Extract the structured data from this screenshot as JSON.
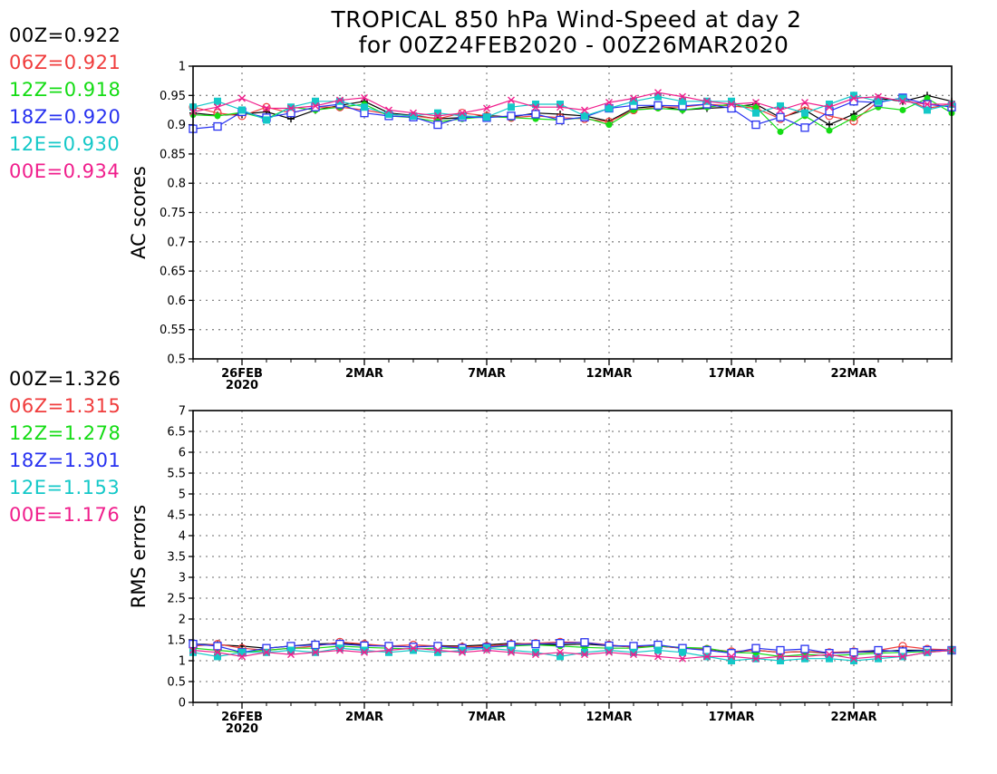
{
  "title_line1": "TROPICAL 850 hPa Wind-Speed at day 2",
  "title_line2": "for 00Z24FEB2020 - 00Z26MAR2020",
  "colors": {
    "00Z": "#000000",
    "06Z": "#f03c3c",
    "12Z": "#14dc14",
    "18Z": "#2832f0",
    "12E": "#14c8c8",
    "00E": "#f01e8c"
  },
  "legend_top": [
    {
      "text": "00Z=0.922",
      "color": "#000000"
    },
    {
      "text": "06Z=0.921",
      "color": "#f03c3c"
    },
    {
      "text": "12Z=0.918",
      "color": "#14dc14"
    },
    {
      "text": "18Z=0.920",
      "color": "#2832f0"
    },
    {
      "text": "12E=0.930",
      "color": "#14c8c8"
    },
    {
      "text": "00E=0.934",
      "color": "#f01e8c"
    }
  ],
  "legend_bottom": [
    {
      "text": "00Z=1.326",
      "color": "#000000"
    },
    {
      "text": "06Z=1.315",
      "color": "#f03c3c"
    },
    {
      "text": "12Z=1.278",
      "color": "#14dc14"
    },
    {
      "text": "18Z=1.301",
      "color": "#2832f0"
    },
    {
      "text": "12E=1.153",
      "color": "#14c8c8"
    },
    {
      "text": "00E=1.176",
      "color": "#f01e8c"
    }
  ],
  "chart_data": [
    {
      "type": "line",
      "ylabel": "AC scores",
      "ylim": [
        0.5,
        1
      ],
      "yticks": [
        "0.5",
        "0.55",
        "0.6",
        "0.65",
        "0.7",
        "0.75",
        "0.8",
        "0.85",
        "0.9",
        "0.95",
        "1"
      ],
      "xlim": [
        24,
        55
      ],
      "xticks": [
        {
          "x": 26,
          "label": "26FEB",
          "sub": "2020"
        },
        {
          "x": 31,
          "label": "2MAR",
          "sub": ""
        },
        {
          "x": 36,
          "label": "7MAR",
          "sub": ""
        },
        {
          "x": 41,
          "label": "12MAR",
          "sub": ""
        },
        {
          "x": 46,
          "label": "17MAR",
          "sub": ""
        },
        {
          "x": 51,
          "label": "22MAR",
          "sub": ""
        }
      ],
      "grid": true,
      "x": [
        24,
        25,
        26,
        27,
        28,
        29,
        30,
        31,
        32,
        33,
        34,
        35,
        36,
        37,
        38,
        39,
        40,
        41,
        42,
        43,
        44,
        45,
        46,
        47,
        48,
        49,
        50,
        51,
        52,
        53,
        54,
        55
      ],
      "series": [
        {
          "name": "00Z",
          "marker": "plus",
          "values": [
            0.92,
            0.916,
            0.918,
            0.922,
            0.91,
            0.925,
            0.933,
            0.94,
            0.92,
            0.916,
            0.91,
            0.912,
            0.916,
            0.913,
            0.92,
            0.918,
            0.915,
            0.906,
            0.928,
            0.932,
            0.925,
            0.928,
            0.93,
            0.935,
            0.912,
            0.925,
            0.9,
            0.918,
            0.945,
            0.94,
            0.95,
            0.94
          ]
        },
        {
          "name": "06Z",
          "marker": "circle",
          "values": [
            0.93,
            0.92,
            0.915,
            0.93,
            0.92,
            0.93,
            0.93,
            0.925,
            0.918,
            0.915,
            0.91,
            0.92,
            0.915,
            0.912,
            0.915,
            0.912,
            0.91,
            0.905,
            0.925,
            0.93,
            0.93,
            0.935,
            0.932,
            0.928,
            0.91,
            0.93,
            0.915,
            0.906,
            0.94,
            0.945,
            0.928,
            0.935
          ]
        },
        {
          "name": "12Z",
          "marker": "dot",
          "values": [
            0.917,
            0.915,
            0.921,
            0.91,
            0.93,
            0.925,
            0.93,
            0.935,
            0.915,
            0.912,
            0.905,
            0.91,
            0.914,
            0.912,
            0.91,
            0.908,
            0.912,
            0.9,
            0.925,
            0.928,
            0.925,
            0.93,
            0.935,
            0.93,
            0.888,
            0.915,
            0.89,
            0.912,
            0.93,
            0.925,
            0.945,
            0.92
          ]
        },
        {
          "name": "18Z",
          "marker": "square-open",
          "values": [
            0.893,
            0.897,
            0.922,
            0.912,
            0.92,
            0.93,
            0.935,
            0.92,
            0.915,
            0.913,
            0.9,
            0.913,
            0.912,
            0.915,
            0.918,
            0.908,
            0.913,
            0.928,
            0.933,
            0.933,
            0.932,
            0.935,
            0.928,
            0.9,
            0.913,
            0.895,
            0.923,
            0.94,
            0.938,
            0.946,
            0.935,
            0.93
          ]
        },
        {
          "name": "12E",
          "marker": "square-filled",
          "values": [
            0.93,
            0.94,
            0.925,
            0.908,
            0.93,
            0.94,
            0.94,
            0.93,
            0.918,
            0.915,
            0.92,
            0.915,
            0.913,
            0.93,
            0.935,
            0.935,
            0.915,
            0.928,
            0.94,
            0.948,
            0.94,
            0.94,
            0.94,
            0.92,
            0.932,
            0.92,
            0.935,
            0.95,
            0.94,
            0.945,
            0.925,
            0.935
          ]
        },
        {
          "name": "00E",
          "marker": "cross",
          "values": [
            0.922,
            0.93,
            0.945,
            0.928,
            0.928,
            0.932,
            0.942,
            0.946,
            0.925,
            0.92,
            0.915,
            0.92,
            0.928,
            0.942,
            0.93,
            0.93,
            0.925,
            0.938,
            0.945,
            0.955,
            0.948,
            0.94,
            0.935,
            0.938,
            0.925,
            0.938,
            0.93,
            0.945,
            0.948,
            0.94,
            0.935,
            0.935
          ]
        }
      ]
    },
    {
      "type": "line",
      "ylabel": "RMS errors",
      "ylim": [
        0,
        7
      ],
      "yticks": [
        "0",
        "0.5",
        "1",
        "1.5",
        "2",
        "2.5",
        "3",
        "3.5",
        "4",
        "4.5",
        "5",
        "5.5",
        "6",
        "6.5",
        "7"
      ],
      "xlim": [
        24,
        55
      ],
      "xticks": [
        {
          "x": 26,
          "label": "26FEB",
          "sub": "2020"
        },
        {
          "x": 31,
          "label": "2MAR",
          "sub": ""
        },
        {
          "x": 36,
          "label": "7MAR",
          "sub": ""
        },
        {
          "x": 41,
          "label": "12MAR",
          "sub": ""
        },
        {
          "x": 46,
          "label": "17MAR",
          "sub": ""
        },
        {
          "x": 51,
          "label": "22MAR",
          "sub": ""
        }
      ],
      "grid": true,
      "x": [
        24,
        25,
        26,
        27,
        28,
        29,
        30,
        31,
        32,
        33,
        34,
        35,
        36,
        37,
        38,
        39,
        40,
        41,
        42,
        43,
        44,
        45,
        46,
        47,
        48,
        49,
        50,
        51,
        52,
        53,
        54,
        55
      ],
      "series": [
        {
          "name": "00Z",
          "marker": "plus",
          "values": [
            1.4,
            1.38,
            1.35,
            1.3,
            1.35,
            1.4,
            1.42,
            1.38,
            1.35,
            1.33,
            1.36,
            1.35,
            1.38,
            1.42,
            1.4,
            1.38,
            1.4,
            1.36,
            1.33,
            1.35,
            1.3,
            1.28,
            1.2,
            1.25,
            1.2,
            1.22,
            1.18,
            1.2,
            1.22,
            1.25,
            1.25,
            1.26
          ]
        },
        {
          "name": "06Z",
          "marker": "circle",
          "values": [
            1.35,
            1.4,
            1.3,
            1.25,
            1.3,
            1.35,
            1.45,
            1.4,
            1.35,
            1.38,
            1.35,
            1.33,
            1.35,
            1.4,
            1.42,
            1.45,
            1.44,
            1.38,
            1.32,
            1.35,
            1.3,
            1.28,
            1.22,
            1.25,
            1.2,
            1.22,
            1.2,
            1.22,
            1.25,
            1.35,
            1.28,
            1.26
          ]
        },
        {
          "name": "12Z",
          "marker": "dot",
          "values": [
            1.3,
            1.25,
            1.2,
            1.25,
            1.3,
            1.3,
            1.35,
            1.32,
            1.3,
            1.28,
            1.3,
            1.3,
            1.32,
            1.35,
            1.38,
            1.35,
            1.32,
            1.3,
            1.3,
            1.35,
            1.32,
            1.3,
            1.2,
            1.18,
            1.1,
            1.15,
            1.12,
            1.15,
            1.18,
            1.2,
            1.22,
            1.24
          ]
        },
        {
          "name": "18Z",
          "marker": "square-open",
          "values": [
            1.4,
            1.35,
            1.2,
            1.3,
            1.35,
            1.38,
            1.4,
            1.36,
            1.35,
            1.33,
            1.35,
            1.3,
            1.32,
            1.38,
            1.4,
            1.42,
            1.44,
            1.36,
            1.35,
            1.38,
            1.3,
            1.25,
            1.18,
            1.3,
            1.25,
            1.28,
            1.18,
            1.2,
            1.25,
            1.22,
            1.25,
            1.25
          ]
        },
        {
          "name": "12E",
          "marker": "square-filled",
          "values": [
            1.2,
            1.1,
            1.2,
            1.2,
            1.25,
            1.2,
            1.3,
            1.25,
            1.2,
            1.25,
            1.2,
            1.25,
            1.3,
            1.25,
            1.2,
            1.1,
            1.2,
            1.25,
            1.2,
            1.25,
            1.2,
            1.1,
            1.0,
            1.05,
            1.0,
            1.05,
            1.05,
            1.0,
            1.05,
            1.1,
            1.2,
            1.25
          ]
        },
        {
          "name": "00E",
          "marker": "cross",
          "values": [
            1.25,
            1.2,
            1.1,
            1.2,
            1.15,
            1.2,
            1.25,
            1.2,
            1.25,
            1.3,
            1.25,
            1.2,
            1.25,
            1.2,
            1.15,
            1.2,
            1.15,
            1.2,
            1.15,
            1.1,
            1.05,
            1.1,
            1.1,
            1.05,
            1.1,
            1.1,
            1.15,
            1.05,
            1.1,
            1.1,
            1.2,
            1.25
          ]
        }
      ]
    }
  ]
}
